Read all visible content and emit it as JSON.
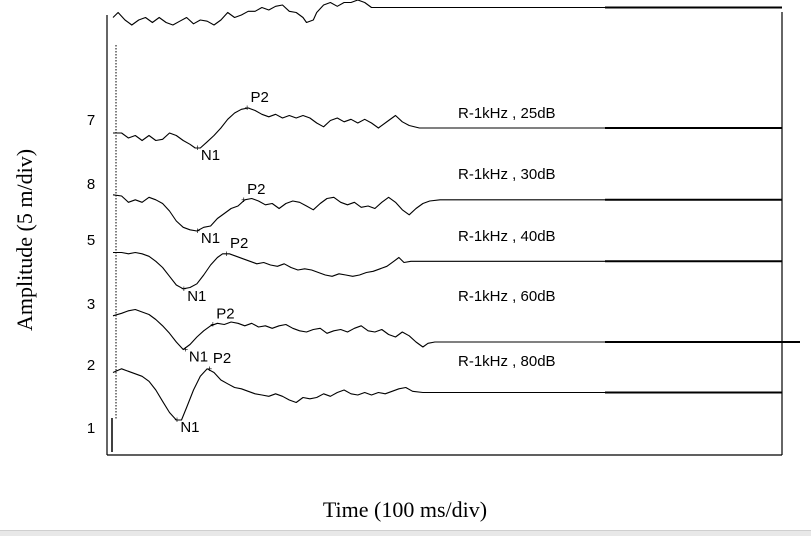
{
  "chart_data": {
    "type": "line",
    "xlabel": "Time (100 ms/div)",
    "ylabel": "Amplitude (5 m/div)",
    "series": [
      {
        "row_label": "7",
        "condition": "",
        "points": [
          [
            0,
            4.3
          ],
          [
            3,
            4.5
          ],
          [
            7,
            4.2
          ],
          [
            11,
            4.0
          ],
          [
            15,
            4.2
          ],
          [
            19,
            4.3
          ],
          [
            23,
            4.1
          ],
          [
            27,
            4.3
          ],
          [
            31,
            4.1
          ],
          [
            35,
            4.0
          ],
          [
            39,
            4.15
          ],
          [
            43,
            4.3
          ],
          [
            47,
            4.05
          ],
          [
            51,
            4.2
          ],
          [
            55,
            4.15
          ],
          [
            59,
            4.0
          ],
          [
            63,
            4.2
          ],
          [
            67,
            4.5
          ],
          [
            71,
            4.3
          ],
          [
            75,
            4.4
          ],
          [
            79,
            4.55
          ],
          [
            83,
            4.55
          ],
          [
            87,
            4.7
          ],
          [
            91,
            4.6
          ],
          [
            95,
            4.75
          ],
          [
            99,
            4.8
          ],
          [
            103,
            4.55
          ],
          [
            107,
            4.5
          ],
          [
            111,
            4.3
          ],
          [
            113,
            4.1
          ],
          [
            117,
            4.2
          ],
          [
            119,
            4.5
          ],
          [
            123,
            4.8
          ],
          [
            127,
            4.9
          ],
          [
            131,
            4.75
          ],
          [
            135,
            4.9
          ],
          [
            139,
            4.9
          ],
          [
            143,
            5.0
          ],
          [
            147,
            4.9
          ],
          [
            151,
            4.7
          ],
          [
            400,
            4.7
          ]
        ],
        "peaks": []
      },
      {
        "row_label": "8",
        "condition": "R-1kHz , 25dB",
        "points": [
          [
            0,
            1.8
          ],
          [
            5,
            1.8
          ],
          [
            9,
            1.6
          ],
          [
            13,
            1.7
          ],
          [
            17,
            1.5
          ],
          [
            21,
            1.7
          ],
          [
            25,
            1.5
          ],
          [
            29,
            1.55
          ],
          [
            33,
            1.8
          ],
          [
            37,
            1.7
          ],
          [
            41,
            1.5
          ],
          [
            45,
            1.35
          ],
          [
            48,
            1.2
          ],
          [
            51,
            1.2
          ],
          [
            55,
            1.45
          ],
          [
            59,
            1.7
          ],
          [
            63,
            2.0
          ],
          [
            67,
            2.35
          ],
          [
            71,
            2.6
          ],
          [
            75,
            2.75
          ],
          [
            79,
            2.8
          ],
          [
            83,
            2.7
          ],
          [
            87,
            2.55
          ],
          [
            91,
            2.45
          ],
          [
            95,
            2.55
          ],
          [
            99,
            2.4
          ],
          [
            103,
            2.5
          ],
          [
            107,
            2.4
          ],
          [
            111,
            2.5
          ],
          [
            115,
            2.4
          ],
          [
            119,
            2.2
          ],
          [
            123,
            2.05
          ],
          [
            127,
            2.3
          ],
          [
            131,
            2.4
          ],
          [
            135,
            2.25
          ],
          [
            139,
            2.35
          ],
          [
            143,
            2.2
          ],
          [
            147,
            2.35
          ],
          [
            151,
            2.2
          ],
          [
            155,
            2.0
          ],
          [
            161,
            2.3
          ],
          [
            165,
            2.5
          ],
          [
            169,
            2.25
          ],
          [
            173,
            2.1
          ],
          [
            179,
            2.0
          ],
          [
            400,
            2.0
          ]
        ],
        "peaks": [
          {
            "label": "N1",
            "x": 49,
            "y": 1.2
          },
          {
            "label": "P2",
            "x": 78,
            "y": 2.8
          }
        ]
      },
      {
        "row_label": "5",
        "condition": "R-1kHz , 30dB",
        "points": [
          [
            0,
            1.65
          ],
          [
            5,
            1.6
          ],
          [
            9,
            1.35
          ],
          [
            13,
            1.45
          ],
          [
            17,
            1.35
          ],
          [
            21,
            1.55
          ],
          [
            25,
            1.45
          ],
          [
            29,
            1.3
          ],
          [
            33,
            1.0
          ],
          [
            37,
            0.6
          ],
          [
            41,
            0.35
          ],
          [
            45,
            0.25
          ],
          [
            49,
            0.2
          ],
          [
            53,
            0.35
          ],
          [
            57,
            0.4
          ],
          [
            61,
            0.7
          ],
          [
            65,
            0.9
          ],
          [
            69,
            1.1
          ],
          [
            73,
            1.2
          ],
          [
            77,
            1.45
          ],
          [
            81,
            1.5
          ],
          [
            85,
            1.4
          ],
          [
            89,
            1.25
          ],
          [
            93,
            1.3
          ],
          [
            97,
            1.1
          ],
          [
            101,
            1.3
          ],
          [
            105,
            1.4
          ],
          [
            109,
            1.35
          ],
          [
            113,
            1.2
          ],
          [
            117,
            1.05
          ],
          [
            121,
            1.3
          ],
          [
            125,
            1.5
          ],
          [
            129,
            1.55
          ],
          [
            133,
            1.35
          ],
          [
            137,
            1.25
          ],
          [
            141,
            1.35
          ],
          [
            145,
            1.15
          ],
          [
            149,
            1.2
          ],
          [
            153,
            1.1
          ],
          [
            157,
            1.35
          ],
          [
            161,
            1.55
          ],
          [
            165,
            1.35
          ],
          [
            169,
            1.05
          ],
          [
            173,
            0.85
          ],
          [
            177,
            1.1
          ],
          [
            181,
            1.3
          ],
          [
            185,
            1.4
          ],
          [
            191,
            1.45
          ],
          [
            400,
            1.45
          ]
        ],
        "peaks": [
          {
            "label": "N1",
            "x": 49,
            "y": 0.2
          },
          {
            "label": "P2",
            "x": 76,
            "y": 1.45
          }
        ]
      },
      {
        "row_label": "3",
        "condition": "R-1kHz , 40dB",
        "points": [
          [
            0,
            1.9
          ],
          [
            5,
            1.9
          ],
          [
            9,
            1.85
          ],
          [
            13,
            1.9
          ],
          [
            17,
            1.85
          ],
          [
            21,
            1.75
          ],
          [
            25,
            1.55
          ],
          [
            29,
            1.3
          ],
          [
            33,
            0.95
          ],
          [
            37,
            0.6
          ],
          [
            41,
            0.45
          ],
          [
            45,
            0.5
          ],
          [
            49,
            0.65
          ],
          [
            53,
            1.0
          ],
          [
            57,
            1.4
          ],
          [
            61,
            1.7
          ],
          [
            64,
            1.85
          ],
          [
            68,
            1.85
          ],
          [
            72,
            1.75
          ],
          [
            76,
            1.65
          ],
          [
            80,
            1.55
          ],
          [
            84,
            1.45
          ],
          [
            88,
            1.5
          ],
          [
            92,
            1.4
          ],
          [
            96,
            1.35
          ],
          [
            100,
            1.45
          ],
          [
            104,
            1.3
          ],
          [
            108,
            1.2
          ],
          [
            112,
            1.25
          ],
          [
            116,
            1.2
          ],
          [
            120,
            1.1
          ],
          [
            124,
            1.0
          ],
          [
            128,
            0.95
          ],
          [
            132,
            1.05
          ],
          [
            136,
            1.0
          ],
          [
            140,
            0.95
          ],
          [
            144,
            1.0
          ],
          [
            148,
            1.1
          ],
          [
            152,
            1.15
          ],
          [
            156,
            1.25
          ],
          [
            160,
            1.35
          ],
          [
            164,
            1.55
          ],
          [
            167,
            1.7
          ],
          [
            170,
            1.5
          ],
          [
            174,
            1.55
          ],
          [
            400,
            1.55
          ]
        ],
        "peaks": [
          {
            "label": "N1",
            "x": 41,
            "y": 0.45
          },
          {
            "label": "P2",
            "x": 66,
            "y": 1.85
          }
        ]
      },
      {
        "row_label": "2",
        "condition": "R-1kHz , 60dB",
        "points": [
          [
            0,
            1.85
          ],
          [
            5,
            1.95
          ],
          [
            9,
            2.05
          ],
          [
            13,
            2.1
          ],
          [
            17,
            2.0
          ],
          [
            21,
            1.9
          ],
          [
            25,
            1.7
          ],
          [
            29,
            1.45
          ],
          [
            33,
            1.15
          ],
          [
            37,
            0.8
          ],
          [
            41,
            0.5
          ],
          [
            45,
            0.7
          ],
          [
            49,
            1.0
          ],
          [
            53,
            1.25
          ],
          [
            57,
            1.45
          ],
          [
            61,
            1.55
          ],
          [
            65,
            1.5
          ],
          [
            69,
            1.6
          ],
          [
            73,
            1.55
          ],
          [
            77,
            1.45
          ],
          [
            81,
            1.55
          ],
          [
            85,
            1.4
          ],
          [
            89,
            1.45
          ],
          [
            93,
            1.35
          ],
          [
            97,
            1.45
          ],
          [
            101,
            1.5
          ],
          [
            105,
            1.35
          ],
          [
            109,
            1.25
          ],
          [
            113,
            1.2
          ],
          [
            117,
            1.3
          ],
          [
            121,
            1.35
          ],
          [
            125,
            1.15
          ],
          [
            129,
            1.25
          ],
          [
            133,
            1.3
          ],
          [
            137,
            1.2
          ],
          [
            141,
            1.35
          ],
          [
            145,
            1.45
          ],
          [
            149,
            1.25
          ],
          [
            153,
            1.2
          ],
          [
            157,
            1.3
          ],
          [
            161,
            1.1
          ],
          [
            165,
            1.0
          ],
          [
            169,
            1.2
          ],
          [
            173,
            1.05
          ],
          [
            177,
            0.8
          ],
          [
            181,
            0.6
          ],
          [
            184,
            0.75
          ],
          [
            188,
            0.8
          ],
          [
            400,
            0.8
          ]
        ],
        "peaks": [
          {
            "label": "N1",
            "x": 42,
            "y": 0.5
          },
          {
            "label": "P2",
            "x": 58,
            "y": 1.5
          }
        ]
      },
      {
        "row_label": "1",
        "condition": "R-1kHz , 80dB",
        "points": [
          [
            0,
            1.9
          ],
          [
            5,
            2.05
          ],
          [
            9,
            1.95
          ],
          [
            13,
            1.85
          ],
          [
            17,
            1.75
          ],
          [
            21,
            1.55
          ],
          [
            25,
            1.2
          ],
          [
            29,
            0.75
          ],
          [
            33,
            0.3
          ],
          [
            37,
            0.0
          ],
          [
            40,
            0.0
          ],
          [
            43,
            0.5
          ],
          [
            47,
            1.2
          ],
          [
            51,
            1.75
          ],
          [
            55,
            2.05
          ],
          [
            59,
            1.9
          ],
          [
            63,
            1.6
          ],
          [
            67,
            1.45
          ],
          [
            71,
            1.3
          ],
          [
            75,
            1.25
          ],
          [
            79,
            1.15
          ],
          [
            83,
            1.05
          ],
          [
            87,
            1.0
          ],
          [
            91,
            0.95
          ],
          [
            95,
            1.05
          ],
          [
            99,
            0.95
          ],
          [
            103,
            0.8
          ],
          [
            107,
            0.7
          ],
          [
            111,
            0.9
          ],
          [
            115,
            0.85
          ],
          [
            119,
            0.9
          ],
          [
            123,
            1.05
          ],
          [
            127,
            0.95
          ],
          [
            131,
            1.1
          ],
          [
            135,
            1.2
          ],
          [
            139,
            1.05
          ],
          [
            143,
            1.0
          ],
          [
            147,
            1.1
          ],
          [
            151,
            1.0
          ],
          [
            155,
            1.1
          ],
          [
            159,
            1.05
          ],
          [
            163,
            1.15
          ],
          [
            167,
            1.25
          ],
          [
            171,
            1.3
          ],
          [
            175,
            1.15
          ],
          [
            181,
            1.1
          ],
          [
            400,
            1.1
          ]
        ],
        "peaks": [
          {
            "label": "N1",
            "x": 37,
            "y": 0.0
          },
          {
            "label": "P2",
            "x": 56,
            "y": 2.05
          }
        ]
      }
    ]
  }
}
